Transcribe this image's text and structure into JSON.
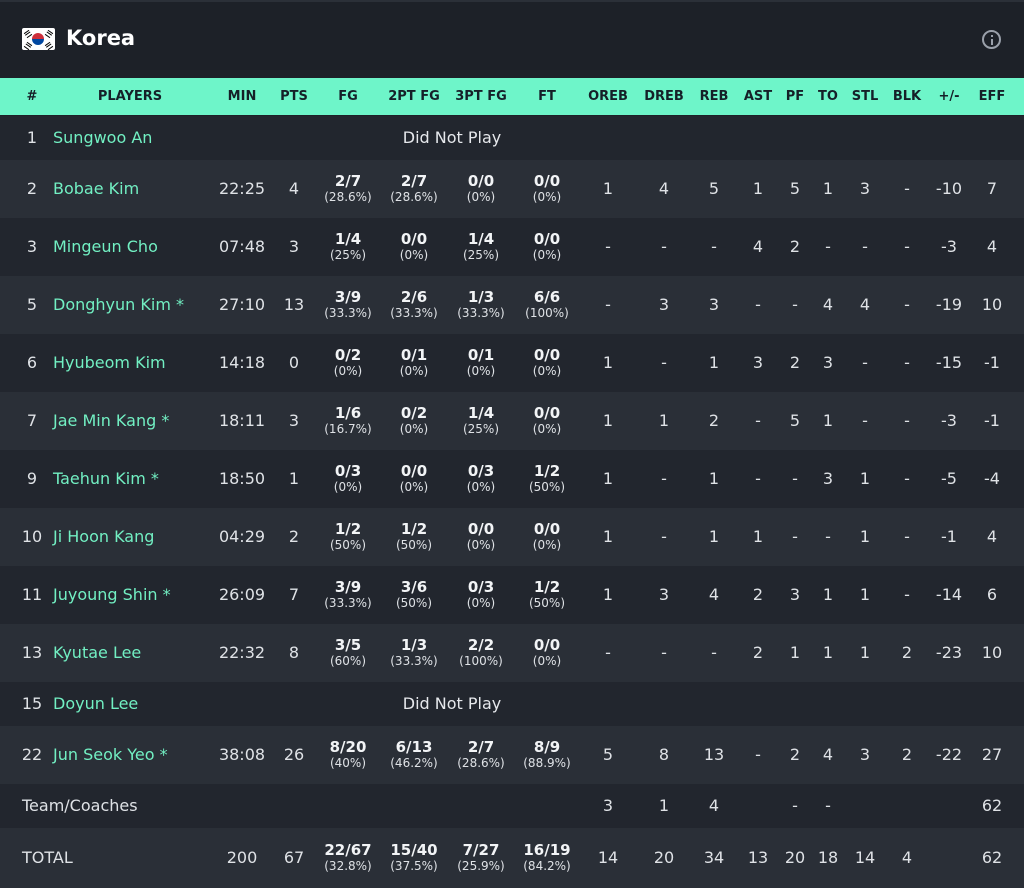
{
  "team": {
    "name": "Korea",
    "flag_icon": "south-korea-flag-icon",
    "info_icon": "info-icon"
  },
  "colors": {
    "header_bg": "#6ef5c9",
    "accent": "#72f0c3",
    "row_a": "#22262e",
    "row_b": "#2a2f37"
  },
  "columns": {
    "num": "#",
    "players": "PLAYERS",
    "min": "MIN",
    "pts": "PTS",
    "fg": "FG",
    "fg2": "2PT FG",
    "fg3": "3PT FG",
    "ft": "FT",
    "oreb": "OREB",
    "dreb": "DREB",
    "reb": "REB",
    "ast": "AST",
    "pf": "PF",
    "to": "TO",
    "stl": "STL",
    "blk": "BLK",
    "pm": "+/-",
    "eff": "EFF"
  },
  "did_not_play_label": "Did Not Play",
  "rows": [
    {
      "num": "1",
      "name": "Sungwoo An",
      "dnp": true
    },
    {
      "num": "2",
      "name": "Bobae Kim",
      "min": "22:25",
      "pts": "4",
      "fg": [
        "2/7",
        "(28.6%)"
      ],
      "fg2": [
        "2/7",
        "(28.6%)"
      ],
      "fg3": [
        "0/0",
        "(0%)"
      ],
      "ft": [
        "0/0",
        "(0%)"
      ],
      "oreb": "1",
      "dreb": "4",
      "reb": "5",
      "ast": "1",
      "pf": "5",
      "to": "1",
      "stl": "3",
      "blk": "-",
      "pm": "-10",
      "eff": "7"
    },
    {
      "num": "3",
      "name": "Mingeun Cho",
      "min": "07:48",
      "pts": "3",
      "fg": [
        "1/4",
        "(25%)"
      ],
      "fg2": [
        "0/0",
        "(0%)"
      ],
      "fg3": [
        "1/4",
        "(25%)"
      ],
      "ft": [
        "0/0",
        "(0%)"
      ],
      "oreb": "-",
      "dreb": "-",
      "reb": "-",
      "ast": "4",
      "pf": "2",
      "to": "-",
      "stl": "-",
      "blk": "-",
      "pm": "-3",
      "eff": "4"
    },
    {
      "num": "5",
      "name": "Donghyun Kim *",
      "min": "27:10",
      "pts": "13",
      "fg": [
        "3/9",
        "(33.3%)"
      ],
      "fg2": [
        "2/6",
        "(33.3%)"
      ],
      "fg3": [
        "1/3",
        "(33.3%)"
      ],
      "ft": [
        "6/6",
        "(100%)"
      ],
      "oreb": "-",
      "dreb": "3",
      "reb": "3",
      "ast": "-",
      "pf": "-",
      "to": "4",
      "stl": "4",
      "blk": "-",
      "pm": "-19",
      "eff": "10"
    },
    {
      "num": "6",
      "name": "Hyubeom Kim",
      "min": "14:18",
      "pts": "0",
      "fg": [
        "0/2",
        "(0%)"
      ],
      "fg2": [
        "0/1",
        "(0%)"
      ],
      "fg3": [
        "0/1",
        "(0%)"
      ],
      "ft": [
        "0/0",
        "(0%)"
      ],
      "oreb": "1",
      "dreb": "-",
      "reb": "1",
      "ast": "3",
      "pf": "2",
      "to": "3",
      "stl": "-",
      "blk": "-",
      "pm": "-15",
      "eff": "-1"
    },
    {
      "num": "7",
      "name": "Jae Min Kang *",
      "min": "18:11",
      "pts": "3",
      "fg": [
        "1/6",
        "(16.7%)"
      ],
      "fg2": [
        "0/2",
        "(0%)"
      ],
      "fg3": [
        "1/4",
        "(25%)"
      ],
      "ft": [
        "0/0",
        "(0%)"
      ],
      "oreb": "1",
      "dreb": "1",
      "reb": "2",
      "ast": "-",
      "pf": "5",
      "to": "1",
      "stl": "-",
      "blk": "-",
      "pm": "-3",
      "eff": "-1"
    },
    {
      "num": "9",
      "name": "Taehun Kim *",
      "min": "18:50",
      "pts": "1",
      "fg": [
        "0/3",
        "(0%)"
      ],
      "fg2": [
        "0/0",
        "(0%)"
      ],
      "fg3": [
        "0/3",
        "(0%)"
      ],
      "ft": [
        "1/2",
        "(50%)"
      ],
      "oreb": "1",
      "dreb": "-",
      "reb": "1",
      "ast": "-",
      "pf": "-",
      "to": "3",
      "stl": "1",
      "blk": "-",
      "pm": "-5",
      "eff": "-4"
    },
    {
      "num": "10",
      "name": "Ji Hoon Kang",
      "min": "04:29",
      "pts": "2",
      "fg": [
        "1/2",
        "(50%)"
      ],
      "fg2": [
        "1/2",
        "(50%)"
      ],
      "fg3": [
        "0/0",
        "(0%)"
      ],
      "ft": [
        "0/0",
        "(0%)"
      ],
      "oreb": "1",
      "dreb": "-",
      "reb": "1",
      "ast": "1",
      "pf": "-",
      "to": "-",
      "stl": "1",
      "blk": "-",
      "pm": "-1",
      "eff": "4"
    },
    {
      "num": "11",
      "name": "Juyoung Shin *",
      "min": "26:09",
      "pts": "7",
      "fg": [
        "3/9",
        "(33.3%)"
      ],
      "fg2": [
        "3/6",
        "(50%)"
      ],
      "fg3": [
        "0/3",
        "(0%)"
      ],
      "ft": [
        "1/2",
        "(50%)"
      ],
      "oreb": "1",
      "dreb": "3",
      "reb": "4",
      "ast": "2",
      "pf": "3",
      "to": "1",
      "stl": "1",
      "blk": "-",
      "pm": "-14",
      "eff": "6"
    },
    {
      "num": "13",
      "name": "Kyutae Lee",
      "min": "22:32",
      "pts": "8",
      "fg": [
        "3/5",
        "(60%)"
      ],
      "fg2": [
        "1/3",
        "(33.3%)"
      ],
      "fg3": [
        "2/2",
        "(100%)"
      ],
      "ft": [
        "0/0",
        "(0%)"
      ],
      "oreb": "-",
      "dreb": "-",
      "reb": "-",
      "ast": "2",
      "pf": "1",
      "to": "1",
      "stl": "1",
      "blk": "2",
      "pm": "-23",
      "eff": "10"
    },
    {
      "num": "15",
      "name": "Doyun Lee",
      "dnp": true
    },
    {
      "num": "22",
      "name": "Jun Seok Yeo *",
      "min": "38:08",
      "pts": "26",
      "fg": [
        "8/20",
        "(40%)"
      ],
      "fg2": [
        "6/13",
        "(46.2%)"
      ],
      "fg3": [
        "2/7",
        "(28.6%)"
      ],
      "ft": [
        "8/9",
        "(88.9%)"
      ],
      "oreb": "5",
      "dreb": "8",
      "reb": "13",
      "ast": "-",
      "pf": "2",
      "to": "4",
      "stl": "3",
      "blk": "2",
      "pm": "-22",
      "eff": "27"
    }
  ],
  "team_coaches": {
    "label": "Team/Coaches",
    "oreb": "3",
    "dreb": "1",
    "reb": "4",
    "pf": "-",
    "to": "-",
    "eff": "62"
  },
  "total": {
    "label": "TOTAL",
    "min": "200",
    "pts": "67",
    "fg": [
      "22/67",
      "(32.8%)"
    ],
    "fg2": [
      "15/40",
      "(37.5%)"
    ],
    "fg3": [
      "7/27",
      "(25.9%)"
    ],
    "ft": [
      "16/19",
      "(84.2%)"
    ],
    "oreb": "14",
    "dreb": "20",
    "reb": "34",
    "ast": "13",
    "pf": "20",
    "to": "18",
    "stl": "14",
    "blk": "4",
    "eff": "62"
  }
}
